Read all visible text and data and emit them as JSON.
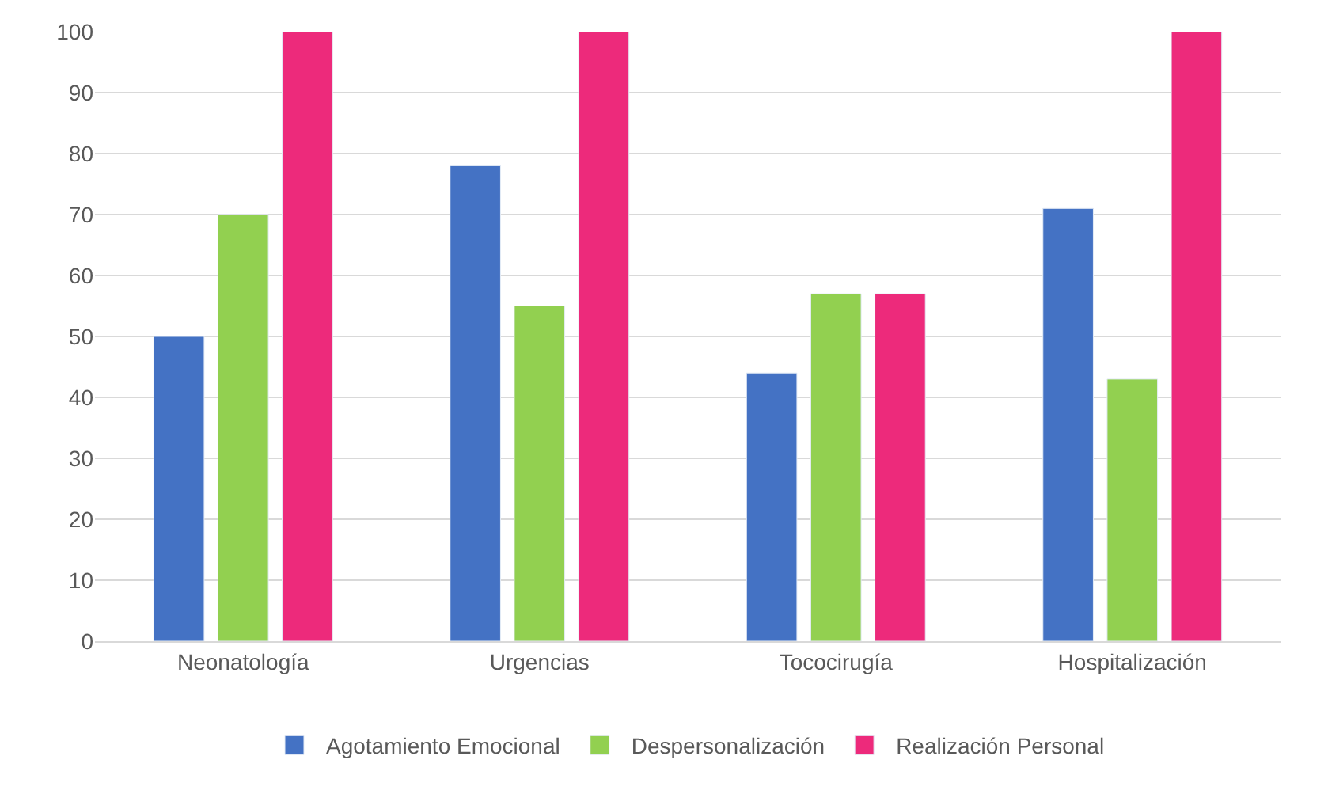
{
  "chart_data": {
    "type": "bar",
    "categories": [
      "Neonatología",
      "Urgencias",
      "Tococirugía",
      "Hospitalización"
    ],
    "series": [
      {
        "name": "Agotamiento Emocional",
        "color": "#4472c4",
        "values": [
          50,
          78,
          44,
          71
        ]
      },
      {
        "name": "Despersonalización",
        "color": "#92d050",
        "values": [
          70,
          55,
          57,
          43
        ]
      },
      {
        "name": "Realización Personal",
        "color": "#ed2a7b",
        "values": [
          100,
          100,
          57,
          100
        ]
      }
    ],
    "ylim": [
      0,
      100
    ],
    "yticks": [
      0,
      10,
      20,
      30,
      40,
      50,
      60,
      70,
      80,
      90,
      100
    ],
    "grid": "y",
    "legend": "bottom"
  }
}
